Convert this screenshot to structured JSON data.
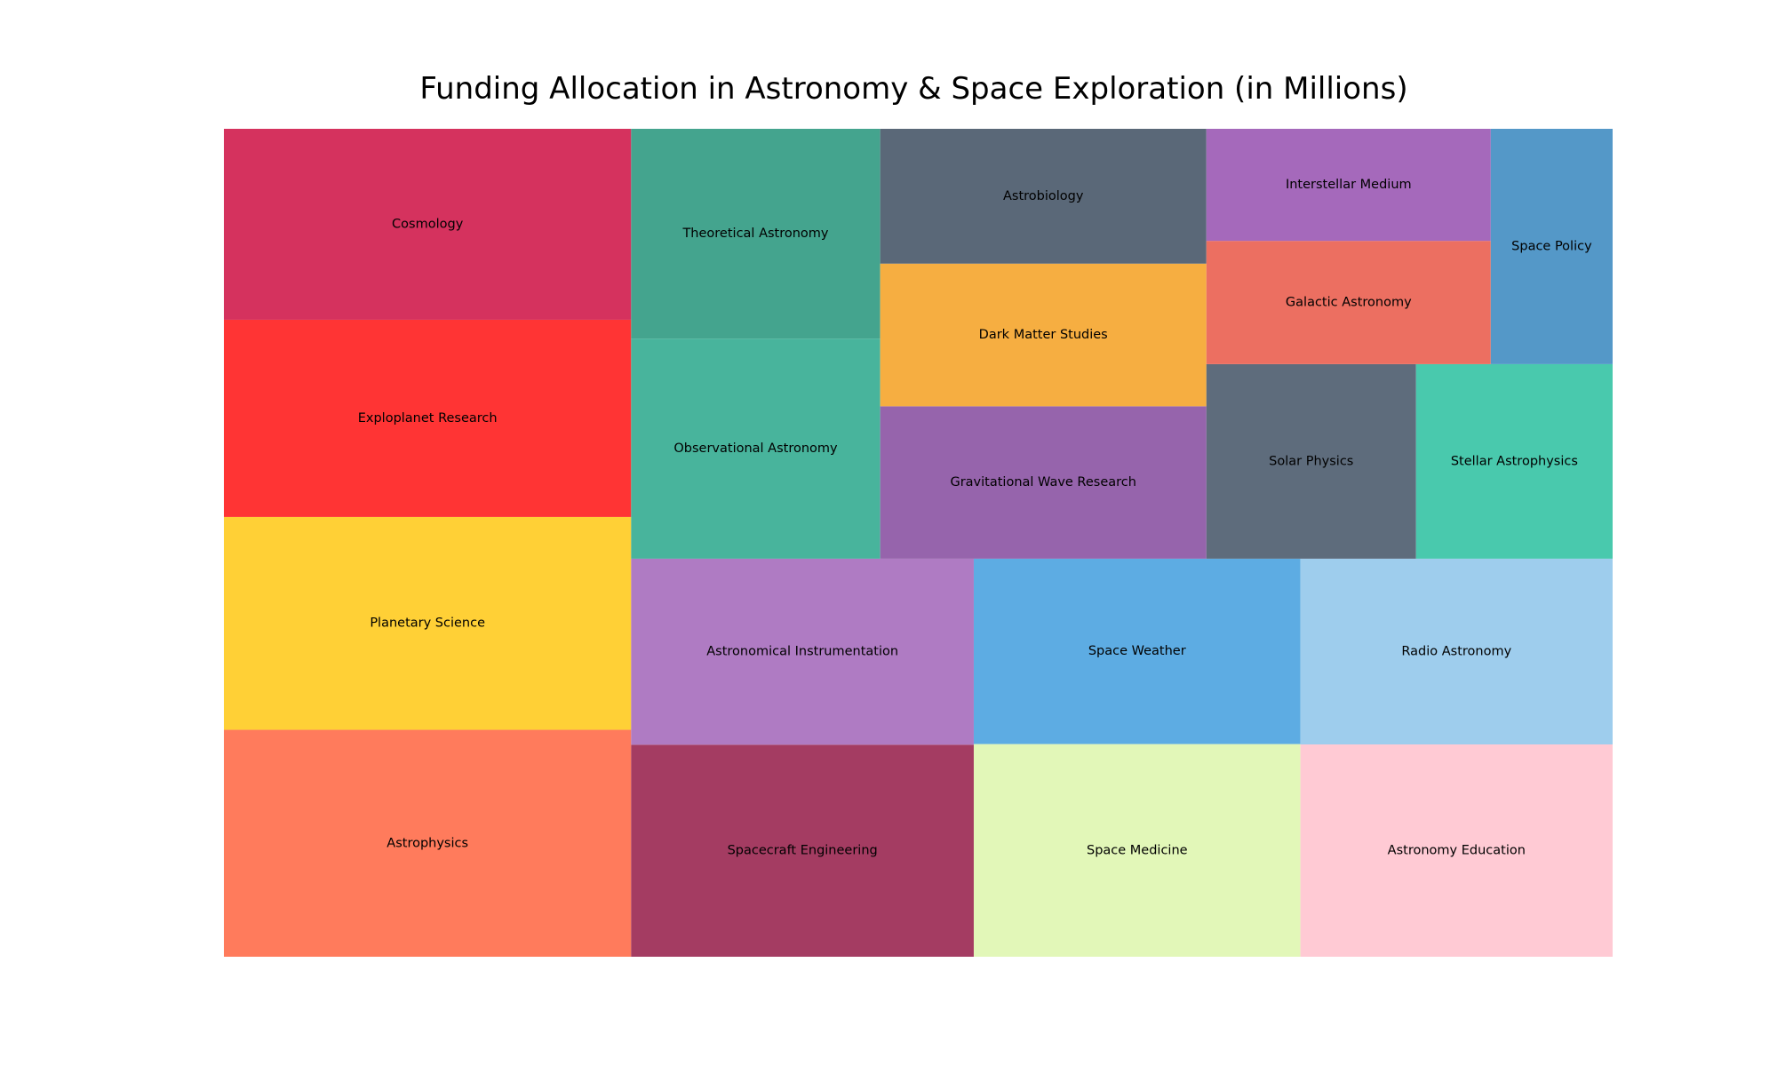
{
  "chart_data": {
    "type": "treemap",
    "title": "Funding Allocation in Astronomy & Space Exploration (in Millions)",
    "unit": "Millions",
    "items": [
      {
        "label": "Astrophysics",
        "value": 145,
        "color": "#FF7B5C"
      },
      {
        "label": "Planetary Science",
        "value": 136,
        "color": "#FFD036"
      },
      {
        "label": "Exploplanet Research",
        "value": 126,
        "color": "#FF3434"
      },
      {
        "label": "Cosmology",
        "value": 122,
        "color": "#D5325E"
      },
      {
        "label": "Observational Astronomy",
        "value": 86,
        "color": "#48B49C"
      },
      {
        "label": "Theoretical Astronomy",
        "value": 82,
        "color": "#44A48E"
      },
      {
        "label": "Gravitational Wave Research",
        "value": 78,
        "color": "#9664AC"
      },
      {
        "label": "Dark Matter Studies",
        "value": 73,
        "color": "#F6AE41"
      },
      {
        "label": "Astrobiology",
        "value": 69,
        "color": "#5A6878"
      },
      {
        "label": "Solar Physics",
        "value": 64,
        "color": "#5E6C7C"
      },
      {
        "label": "Stellar Astrophysics",
        "value": 60,
        "color": "#49C9AD"
      },
      {
        "label": "Galactic Astronomy",
        "value": 55,
        "color": "#EC6F61"
      },
      {
        "label": "Interstellar Medium",
        "value": 50,
        "color": "#A569BB"
      },
      {
        "label": "Space Policy",
        "value": 45,
        "color": "#5498C8"
      },
      {
        "label": "Spacecraft Engineering",
        "value": 114,
        "color": "#A43C62"
      },
      {
        "label": "Astronomical Instrumentation",
        "value": 100,
        "color": "#AF7BC3"
      },
      {
        "label": "Space Medicine",
        "value": 109,
        "color": "#E2F7B8"
      },
      {
        "label": "Space Weather",
        "value": 95,
        "color": "#5DACE3"
      },
      {
        "label": "Astronomy Education",
        "value": 104,
        "color": "#FFCAD4"
      },
      {
        "label": "Radio Astronomy",
        "value": 91,
        "color": "#9ECDED"
      }
    ]
  }
}
